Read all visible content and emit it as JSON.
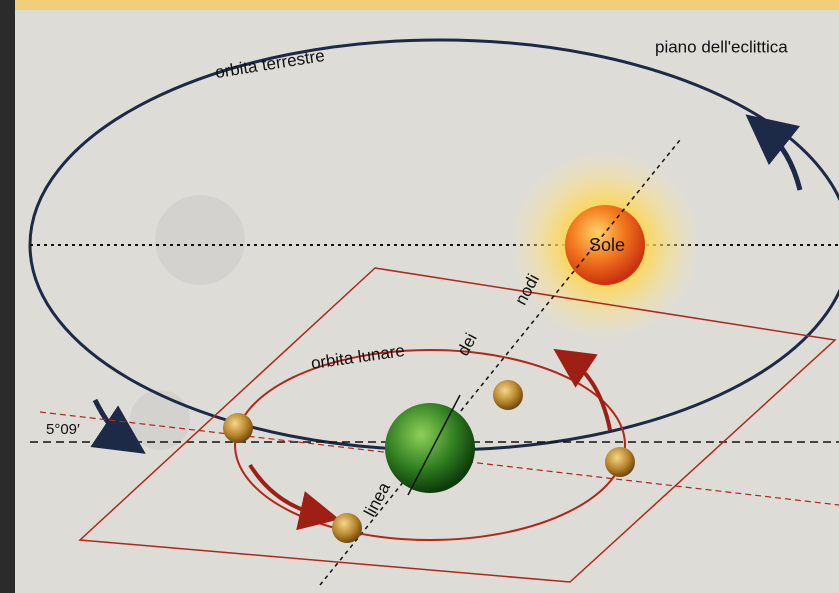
{
  "labels": {
    "earth_orbit": "orbita  terrestre",
    "ecliptic_plane": "piano dell'eclittica",
    "sun": "Sole",
    "nodes_word_1": "nodi",
    "nodes_word_2": "dei",
    "nodes_word_3": "linea",
    "moon_orbit": "orbita lunare",
    "inclination": "5°09′"
  }
}
